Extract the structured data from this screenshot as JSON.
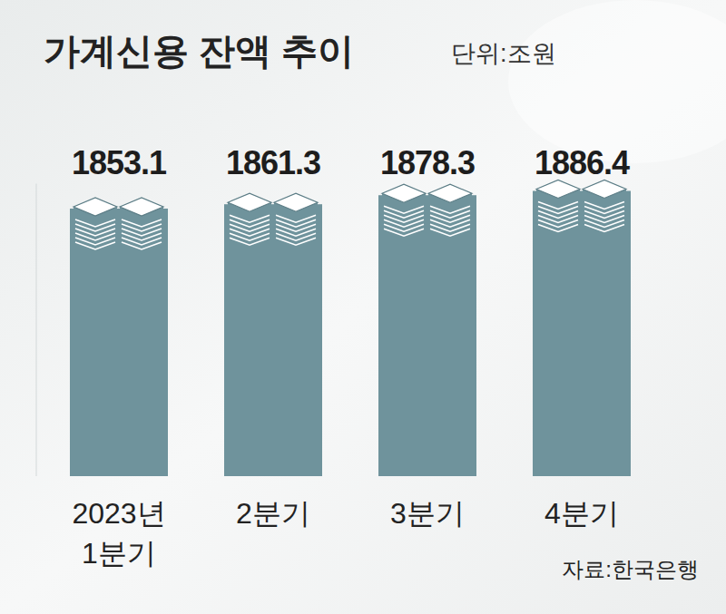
{
  "chart_data": {
    "type": "bar",
    "title": "가계신용 잔액 추이",
    "subtitle": "단위:조원",
    "source": "자료:한국은행",
    "categories": [
      "2023년 1분기",
      "2분기",
      "3분기",
      "4분기"
    ],
    "values": [
      1853.1,
      1861.3,
      1878.3,
      1886.4
    ],
    "color": "#6f939c",
    "ylim": [
      1350,
      1900
    ],
    "data_labels": true,
    "tick_labels": "x",
    "grid": false
  }
}
